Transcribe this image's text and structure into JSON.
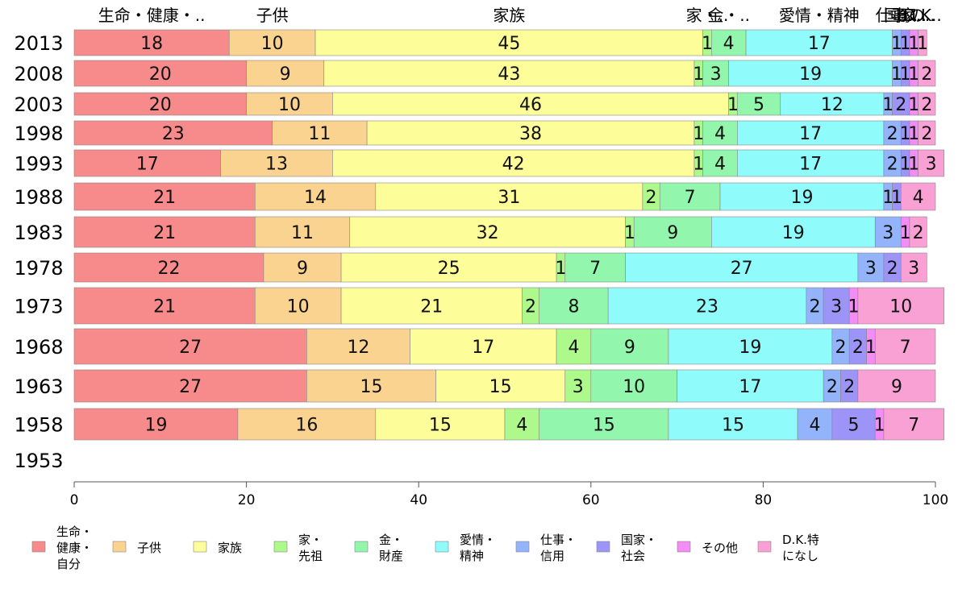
{
  "chart_data": {
    "type": "bar",
    "orientation": "horizontal",
    "stacked": true,
    "categories": [
      "2013",
      "2008",
      "2003",
      "1998",
      "1993",
      "1988",
      "1983",
      "1978",
      "1973",
      "1968",
      "1963",
      "1958",
      "1953"
    ],
    "xlim": [
      0,
      100
    ],
    "xticks": [
      0,
      20,
      40,
      60,
      80,
      100
    ],
    "grid": false,
    "legend_position": "bottom",
    "series": [
      {
        "name": "生命・健康・自分",
        "legend_lines": [
          "生命・",
          "健康・",
          "自分"
        ],
        "top_label": "生命・健康・..",
        "color": "#f78a8a",
        "values": [
          18,
          20,
          20,
          23,
          17,
          21,
          21,
          22,
          21,
          27,
          27,
          19,
          null
        ]
      },
      {
        "name": "子供",
        "legend_lines": [
          "子供"
        ],
        "top_label": "子供",
        "color": "#fbd390",
        "values": [
          10,
          9,
          10,
          11,
          13,
          14,
          11,
          9,
          10,
          12,
          15,
          16,
          null
        ]
      },
      {
        "name": "家族",
        "legend_lines": [
          "家族"
        ],
        "top_label": "家族",
        "color": "#fdfd99",
        "values": [
          45,
          43,
          46,
          38,
          42,
          31,
          32,
          25,
          21,
          17,
          15,
          15,
          null
        ]
      },
      {
        "name": "家・先祖",
        "legend_lines": [
          "家・",
          "先祖"
        ],
        "top_label": "家・..",
        "color": "#aef98c",
        "values": [
          1,
          1,
          1,
          1,
          1,
          2,
          1,
          1,
          2,
          4,
          3,
          4,
          null
        ]
      },
      {
        "name": "金・財産",
        "legend_lines": [
          "金・",
          "財産"
        ],
        "top_label": "金・..",
        "color": "#92f7ac",
        "values": [
          4,
          3,
          5,
          4,
          4,
          7,
          9,
          7,
          8,
          9,
          10,
          15,
          null
        ]
      },
      {
        "name": "愛情・精神",
        "legend_lines": [
          "愛情・",
          "精神"
        ],
        "top_label": "愛情・精神",
        "color": "#8ffbfb",
        "values": [
          17,
          19,
          12,
          17,
          17,
          19,
          19,
          27,
          23,
          19,
          17,
          15,
          null
        ]
      },
      {
        "name": "仕事・信用",
        "legend_lines": [
          "仕事・",
          "信用"
        ],
        "top_label": "仕事..",
        "color": "#93b3fb",
        "values": [
          1,
          1,
          1,
          2,
          2,
          1,
          3,
          3,
          2,
          2,
          2,
          4,
          null
        ]
      },
      {
        "name": "国家・社会",
        "legend_lines": [
          "国家・",
          "社会"
        ],
        "top_label": "国家..",
        "color": "#9c94f7",
        "values": [
          1,
          1,
          2,
          1,
          1,
          1,
          0,
          2,
          3,
          2,
          2,
          5,
          null
        ]
      },
      {
        "name": "その他",
        "legend_lines": [
          "その他"
        ],
        "top_label": "その..",
        "color": "#f48cf6",
        "values": [
          1,
          1,
          1,
          1,
          1,
          0,
          1,
          0,
          1,
          1,
          0,
          1,
          null
        ]
      },
      {
        "name": "D.K.特になし",
        "legend_lines": [
          "D.K.特",
          "になし"
        ],
        "top_label": "D.K..",
        "color": "#f9a0d4",
        "values": [
          1,
          2,
          2,
          2,
          3,
          4,
          2,
          3,
          10,
          7,
          9,
          7,
          null
        ]
      }
    ]
  }
}
